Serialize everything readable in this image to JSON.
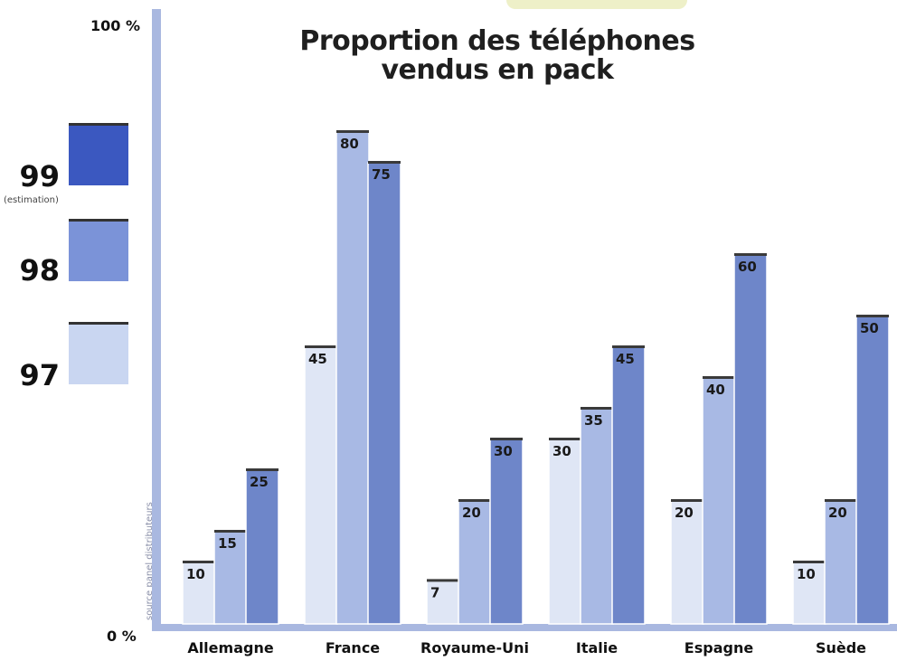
{
  "chart_data": {
    "type": "bar",
    "title_lines": [
      "Proportion des téléphones",
      "vendus en pack"
    ],
    "categories": [
      "Allemagne",
      "France",
      "Royaume-Uni",
      "Italie",
      "Espagne",
      "Suède"
    ],
    "series": [
      {
        "name": "97",
        "color": "#dfe6f5",
        "values": [
          10,
          45,
          7,
          30,
          20,
          10
        ]
      },
      {
        "name": "98",
        "color": "#a8b9e4",
        "values": [
          15,
          80,
          20,
          35,
          40,
          20
        ]
      },
      {
        "name": "99",
        "color": "#6e86c9",
        "values": [
          25,
          75,
          30,
          45,
          60,
          50
        ]
      }
    ],
    "ylim": [
      0,
      100
    ],
    "y_tick_labels": {
      "top": "100 %",
      "bottom": "0 %"
    },
    "legend": {
      "items": [
        {
          "year": "99",
          "note": "(estimation)",
          "color": "#3b58c0"
        },
        {
          "year": "98",
          "note": "",
          "color": "#7b93d8"
        },
        {
          "year": "97",
          "note": "",
          "color": "#c9d6f1"
        }
      ],
      "placement": "left"
    },
    "source_note": "source panel distributeurs",
    "axis_color": "#a9b8e0",
    "grid": false
  }
}
